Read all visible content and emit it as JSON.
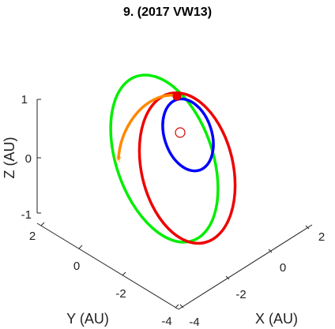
{
  "chart_data": {
    "type": "line",
    "title": "9. (2017 VW13)",
    "xlabel": "X (AU)",
    "ylabel": "Y (AU)",
    "zlabel": "Z (AU)",
    "x_ticks": [
      "-4",
      "-2",
      "0",
      "2"
    ],
    "y_ticks": [
      "-4",
      "-2",
      "0",
      "2"
    ],
    "z_ticks": [
      "-1",
      "0",
      "1"
    ],
    "xlim": [
      -4,
      2.5
    ],
    "ylim": [
      -4,
      2.5
    ],
    "zlim": [
      -1,
      1
    ],
    "grid": false,
    "colors": {
      "blue_orbit": "#0000ff",
      "green_orbit": "#00ee00",
      "red_orbit": "#ee0000",
      "transfer_arc": "#ff8800",
      "sun_marker": "#dd0000",
      "star_marker": "#ff8800"
    },
    "markers": {
      "sun": "circle",
      "arrival": "star"
    }
  }
}
